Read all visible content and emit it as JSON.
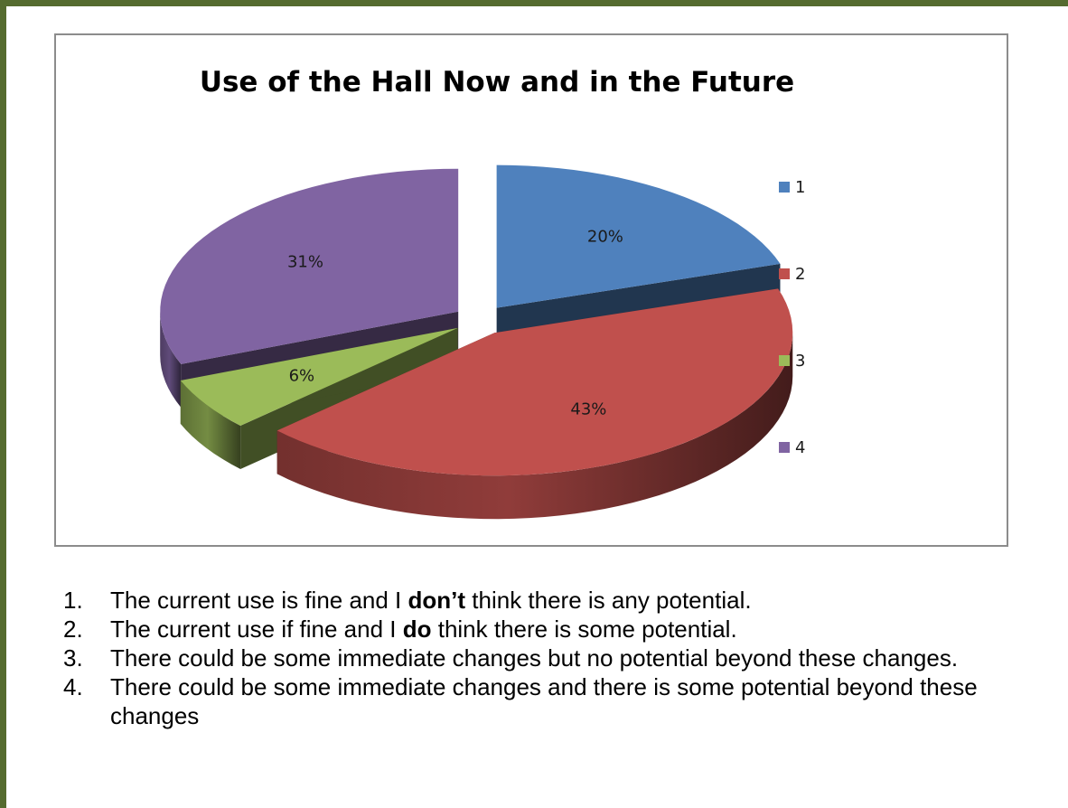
{
  "chart_data": {
    "type": "pie",
    "title": "Use of the Hall Now and in the Future",
    "legend_position": "right",
    "categories": [
      "1",
      "2",
      "3",
      "4"
    ],
    "values": [
      20,
      43,
      6,
      31
    ],
    "labels": [
      "20%",
      "43%",
      "6%",
      "31%"
    ],
    "colors": [
      "#4f81bd",
      "#c0504d",
      "#9bbb59",
      "#8064a2"
    ],
    "exploded": true,
    "three_d": true
  },
  "notes": [
    {
      "num": "1.",
      "before": "The current use is fine and I ",
      "bold": "don’t",
      "after": " think there is any potential."
    },
    {
      "num": "2.",
      "before": "The current use if fine and I ",
      "bold": "do",
      "after": " think there is some potential."
    },
    {
      "num": "3.",
      "before": "There could be some immediate changes but no potential beyond these changes.",
      "bold": "",
      "after": ""
    },
    {
      "num": "4.",
      "before": "There could be some immediate changes and there is some potential beyond these changes",
      "bold": "",
      "after": ""
    }
  ]
}
